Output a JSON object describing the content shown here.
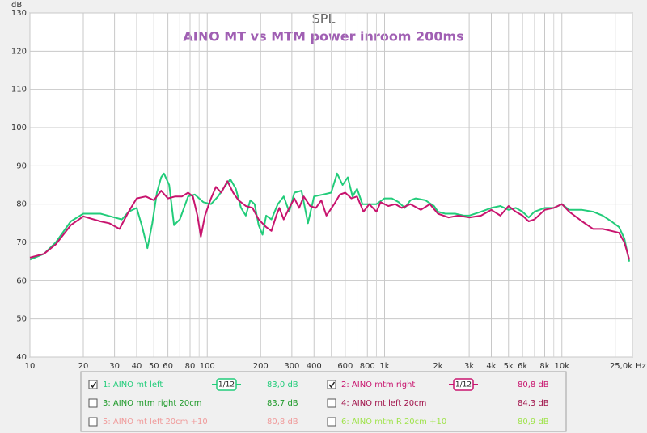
{
  "chart_data": {
    "type": "line",
    "title": "SPL",
    "subtitle": "AINO MT vs MTM power inroom 200ms",
    "y_label": "dB",
    "x_label": "Hz",
    "xscale": "log",
    "grid": true,
    "xlim": [
      10,
      25000
    ],
    "ylim": [
      40,
      130
    ],
    "yticks": [
      40,
      50,
      60,
      70,
      80,
      90,
      100,
      110,
      120,
      130
    ],
    "xticks": [
      10,
      20,
      30,
      40,
      50,
      60,
      80,
      100,
      200,
      300,
      400,
      600,
      800,
      {
        "value": 1000,
        "label": "1k"
      },
      {
        "value": 2000,
        "label": "2k"
      },
      {
        "value": 3000,
        "label": "3k"
      },
      {
        "value": 4000,
        "label": "4k"
      },
      {
        "value": 5000,
        "label": "5k"
      },
      {
        "value": 6000,
        "label": "6k"
      },
      {
        "value": 8000,
        "label": "8k"
      },
      {
        "value": 10000,
        "label": "10k"
      },
      {
        "value": 25000,
        "label": "25,0k"
      }
    ],
    "xminorticks": [
      70,
      90,
      500,
      700,
      900,
      7000,
      9000,
      20000
    ],
    "series": [
      {
        "name": "1: AINO mt left",
        "color": "#22cc7a",
        "checked": true,
        "smoothing": "1/12",
        "level": "83,0 dB",
        "x": [
          10,
          12,
          14,
          17,
          20,
          25,
          30,
          33,
          36,
          40,
          43,
          46,
          49,
          52,
          55,
          57,
          61,
          65,
          70,
          78,
          85,
          95,
          105,
          115,
          125,
          135,
          145,
          155,
          165,
          175,
          185,
          195,
          205,
          215,
          230,
          250,
          270,
          290,
          310,
          340,
          370,
          400,
          450,
          500,
          540,
          580,
          620,
          660,
          700,
          750,
          800,
          900,
          1000,
          1100,
          1200,
          1300,
          1400,
          1500,
          1700,
          1900,
          2000,
          2200,
          2500,
          2800,
          3000,
          3500,
          4000,
          4500,
          5000,
          5500,
          6000,
          6500,
          7000,
          8000,
          9000,
          10000,
          11000,
          13000,
          15000,
          17000,
          19000,
          21000,
          22500,
          24000
        ],
        "values": [
          65.5,
          67,
          70,
          75.5,
          77.5,
          77.5,
          76.5,
          76,
          78,
          79,
          74,
          68.5,
          75,
          83,
          87,
          88,
          85,
          74.5,
          76,
          82,
          82.5,
          80.5,
          80,
          82,
          84.5,
          86.5,
          84,
          79,
          77,
          81,
          80,
          74.5,
          72,
          77,
          76,
          80,
          82,
          78,
          83,
          83.5,
          75,
          82,
          82.5,
          83,
          88,
          85,
          87,
          82,
          84,
          80,
          80,
          80,
          81.5,
          81.5,
          80.5,
          79,
          81,
          81.5,
          81,
          79.5,
          78,
          77.5,
          77.5,
          77,
          77,
          78,
          79,
          79.5,
          78.5,
          79,
          78,
          76.5,
          78,
          79,
          79,
          80,
          78.5,
          78.5,
          78,
          77,
          75.5,
          74,
          71,
          65
        ]
      },
      {
        "name": "2: AINO mtm right",
        "color": "#c8146e",
        "checked": true,
        "smoothing": "1/12",
        "level": "80,8 dB",
        "x": [
          10,
          12,
          14,
          17,
          20,
          25,
          28,
          32,
          36,
          40,
          45,
          50,
          55,
          60,
          66,
          72,
          78,
          83,
          88,
          92,
          97,
          105,
          112,
          120,
          130,
          140,
          150,
          165,
          180,
          195,
          215,
          230,
          245,
          255,
          270,
          290,
          310,
          330,
          350,
          380,
          410,
          440,
          470,
          520,
          560,
          600,
          650,
          700,
          760,
          820,
          900,
          950,
          1050,
          1150,
          1250,
          1400,
          1600,
          1800,
          2000,
          2300,
          2600,
          3000,
          3500,
          4000,
          4500,
          5000,
          5500,
          6000,
          6500,
          7000,
          8000,
          9000,
          10000,
          11000,
          13000,
          15000,
          17000,
          19000,
          21000,
          22500,
          24000
        ],
        "values": [
          66,
          67,
          69.5,
          74.5,
          76.8,
          75.5,
          75,
          73.5,
          78,
          81.5,
          82,
          81,
          83.5,
          81.5,
          82,
          82,
          83,
          82,
          77,
          71.5,
          77,
          81.5,
          84.5,
          83,
          86,
          83,
          81,
          79.5,
          79,
          76,
          74,
          73,
          77,
          79,
          76,
          79,
          81.5,
          79,
          82,
          79.5,
          79,
          81,
          77,
          80,
          82.5,
          83,
          81.5,
          82,
          78,
          80,
          78,
          80.5,
          79.5,
          80,
          79,
          80,
          78.5,
          80,
          77.5,
          76.5,
          77,
          76.5,
          77,
          78.5,
          77,
          79.5,
          78,
          77,
          75.5,
          76,
          78.5,
          79,
          80,
          78,
          75.5,
          73.5,
          73.5,
          73,
          72.5,
          70,
          65.5
        ]
      }
    ],
    "hidden_traces": [
      {
        "name": "3: AINO mtm right 20cm",
        "color": "#1f9a2a",
        "checked": false,
        "level": "83,7 dB"
      },
      {
        "name": "4: AINO mt left 20cm",
        "color": "#a0124a",
        "checked": false,
        "level": "84,3 dB"
      },
      {
        "name": "5: AINO mt left 20cm +10",
        "color": "#f09a9a",
        "checked": false,
        "level": "80,8 dB"
      },
      {
        "name": "6: AINO mtm R 20cm +10",
        "color": "#9fe34a",
        "checked": false,
        "level": "80,9 dB"
      }
    ]
  }
}
